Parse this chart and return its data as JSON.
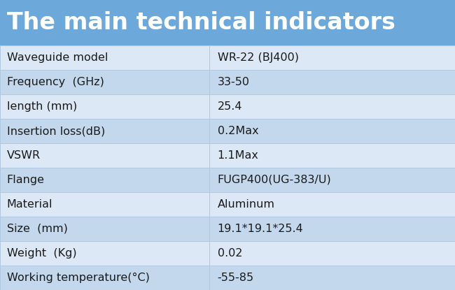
{
  "title": "The main technical indicators",
  "title_bg_color": "#6da8db",
  "title_text_color": "#ffffff",
  "title_fontsize": 24,
  "col_split": 0.46,
  "rows": [
    {
      "label": "Waveguide model",
      "value": "WR-22 (BJ400)"
    },
    {
      "label": "Frequency  (GHz)",
      "value": "33-50"
    },
    {
      "label": "length (mm)",
      "value": "25.4"
    },
    {
      "label": "Insertion loss(dB)",
      "value": "0.2Max"
    },
    {
      "label": "VSWR",
      "value": "1.1Max"
    },
    {
      "label": "Flange",
      "value": "FUGP400(UG-383/U)"
    },
    {
      "label": "Material",
      "value": "Aluminum"
    },
    {
      "label": "Size  (mm)",
      "value": "19.1*19.1*25.4"
    },
    {
      "label": "Weight  (Kg)",
      "value": "0.02"
    },
    {
      "label": "Working temperature(°C)",
      "value": "-55-85"
    }
  ],
  "row_even_color": "#dce8f5",
  "row_odd_color": "#c4d8ed",
  "row_text_color": "#1a1a1a",
  "label_fontsize": 11.5,
  "value_fontsize": 11.5,
  "border_color": "#b0c8e0",
  "fig_bg_color": "#ffffff",
  "fig_width": 6.5,
  "fig_height": 4.15,
  "dpi": 100
}
